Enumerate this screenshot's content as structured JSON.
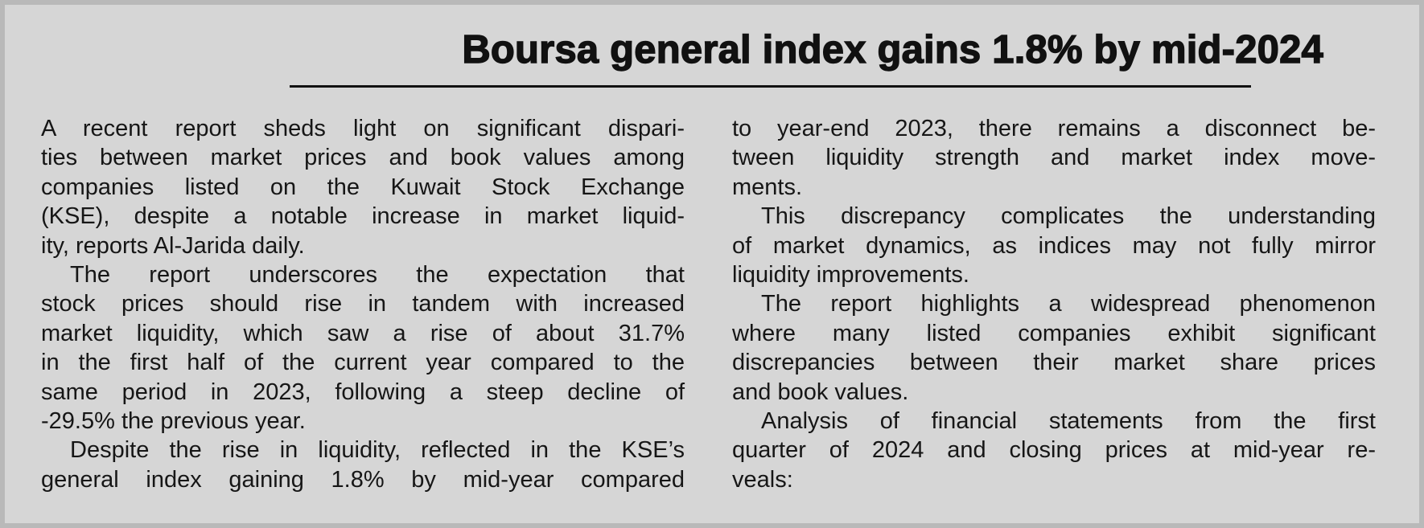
{
  "headline": "Boursa general index gains 1.8% by mid-2024",
  "columns": [
    {
      "paragraphs": [
        {
          "lines": [
            "A recent report sheds light on significant dispari-",
            "ties between market prices and book values among",
            "companies listed on the Kuwait Stock Exchange",
            "(KSE), despite a notable increase in market liquid-",
            "ity, reports Al-Jarida daily."
          ]
        },
        {
          "lines": [
            "The report underscores the expectation that",
            "stock prices should rise in tandem with increased",
            "market liquidity, which saw a rise of about 31.7%",
            "in the first half of the current year compared to the",
            "same period in 2023, following a steep decline of",
            "-29.5% the previous year."
          ]
        },
        {
          "lines": [
            "Despite the rise in liquidity, reflected in the KSE’s",
            "general index gaining 1.8% by mid-year compared"
          ]
        }
      ]
    },
    {
      "paragraphs": [
        {
          "lines": [
            "to year-end 2023, there remains a disconnect be-",
            "tween liquidity strength and market index move-",
            "ments."
          ]
        },
        {
          "lines": [
            "This discrepancy complicates the understanding",
            "of market dynamics, as indices may not fully mirror",
            "liquidity improvements."
          ]
        },
        {
          "lines": [
            "The report highlights a widespread phenomenon",
            "where many listed companies exhibit significant",
            "discrepancies between their market share prices",
            "and book values."
          ]
        },
        {
          "lines": [
            "Analysis of financial statements from the first",
            "quarter of 2024 and closing prices at mid-year re-",
            "veals:"
          ]
        }
      ]
    }
  ]
}
